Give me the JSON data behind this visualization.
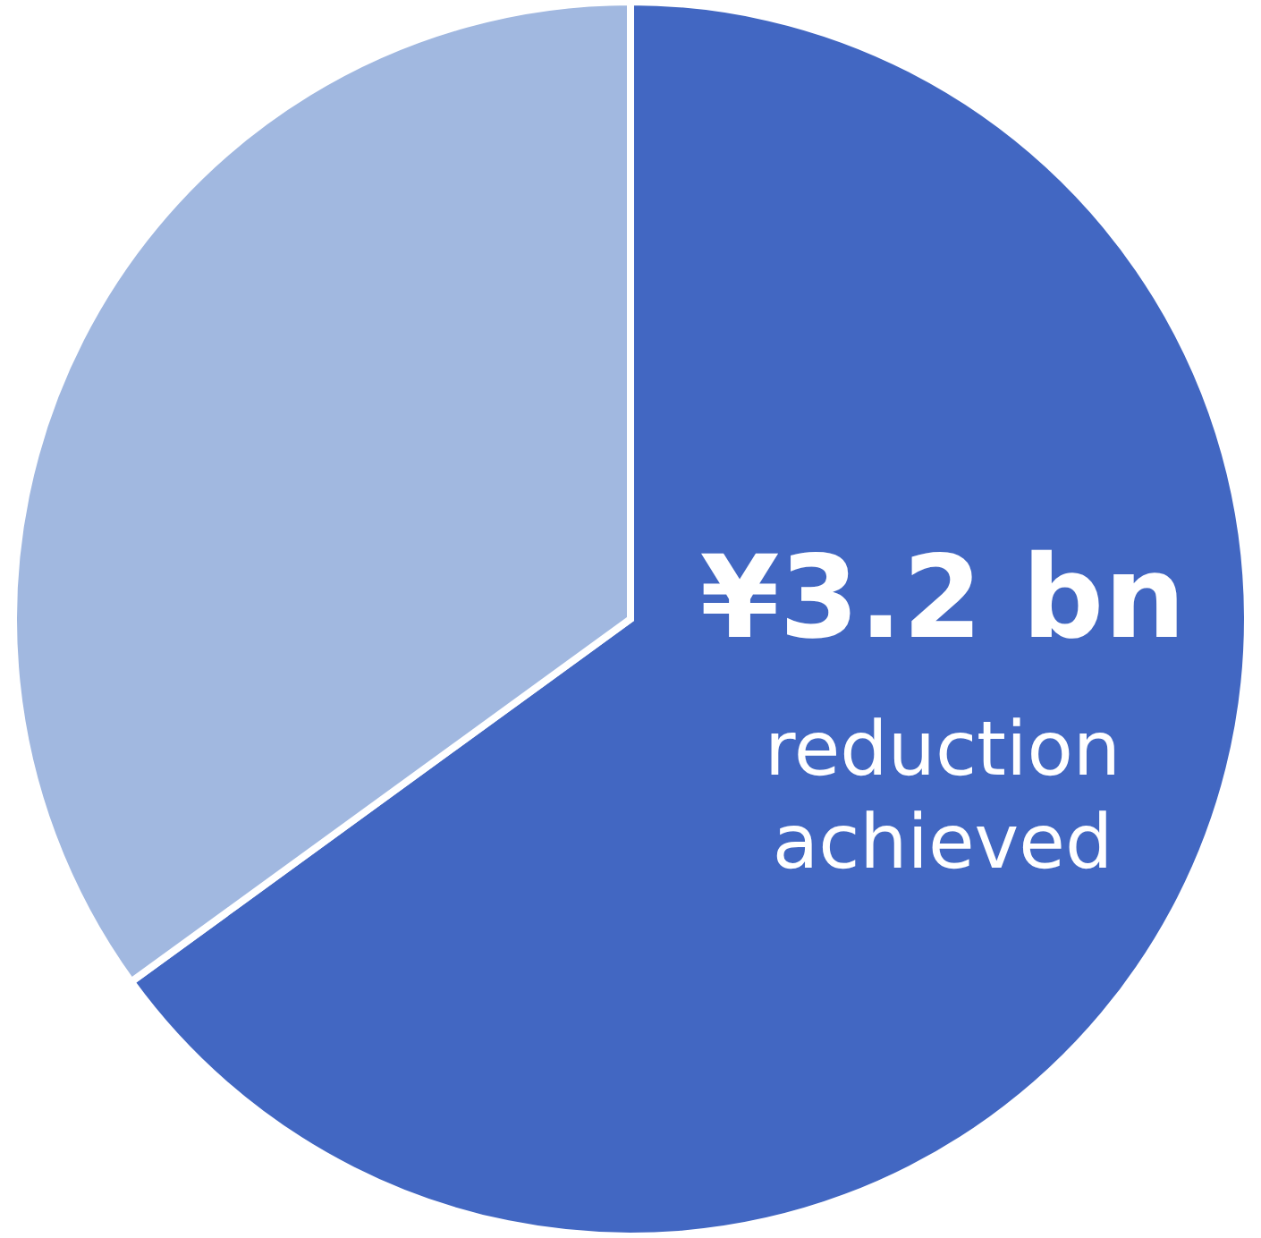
{
  "chart_data": {
    "type": "pie",
    "categories": [
      null,
      null
    ],
    "values": [
      65,
      35
    ],
    "colors": [
      "#4267c2",
      "#a1b8e0"
    ],
    "annotations": [
      "¥3.2 bn",
      "reduction achieved"
    ]
  }
}
